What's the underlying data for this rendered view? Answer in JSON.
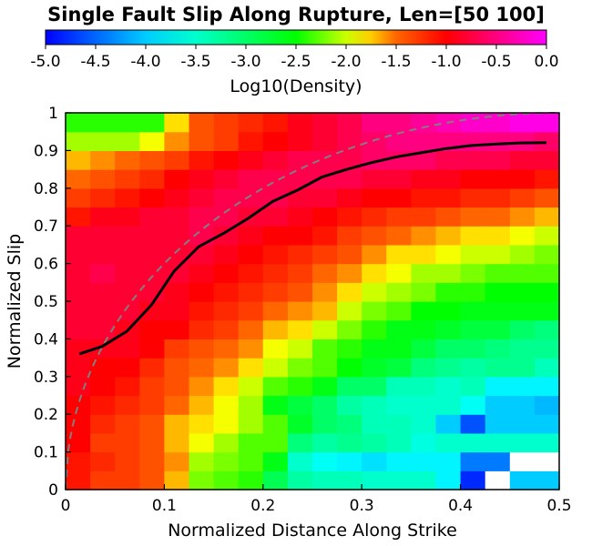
{
  "chart_data": {
    "type": "heatmap",
    "title": "Single Fault Slip Along Rupture, Len=[50 100]",
    "xlabel": "Normalized Distance Along Strike",
    "ylabel": "Normalized Slip",
    "xlim": [
      0,
      0.5
    ],
    "ylim": [
      0,
      1
    ],
    "x_ticks": [
      "0",
      "0.1",
      "0.2",
      "0.3",
      "0.4",
      "0.5"
    ],
    "y_ticks": [
      "0",
      "0.1",
      "0.2",
      "0.3",
      "0.4",
      "0.5",
      "0.6",
      "0.7",
      "0.8",
      "0.9",
      "1"
    ],
    "grid": false,
    "colorbar": {
      "label": "Log10(Density)",
      "range": [
        -5.0,
        0.0
      ],
      "ticks": [
        "-5.0",
        "-4.5",
        "-4.0",
        "-3.5",
        "-3.0",
        "-2.5",
        "-2.0",
        "-1.5",
        "-1.0",
        "-0.5",
        "0.0"
      ],
      "colormap": "hsv-style: blue to cyan to green to yellow to orange to red to magenta"
    },
    "grid_cols": 20,
    "grid_rows": 20,
    "mean_line": {
      "color": "#000000",
      "style": "solid",
      "x": [
        0.014,
        0.037,
        0.062,
        0.087,
        0.11,
        0.135,
        0.16,
        0.185,
        0.21,
        0.235,
        0.26,
        0.285,
        0.31,
        0.335,
        0.36,
        0.385,
        0.41,
        0.435,
        0.46,
        0.487
      ],
      "y": [
        0.36,
        0.38,
        0.42,
        0.49,
        0.58,
        0.645,
        0.68,
        0.72,
        0.765,
        0.795,
        0.83,
        0.85,
        0.868,
        0.883,
        0.894,
        0.905,
        0.913,
        0.917,
        0.92,
        0.921
      ]
    },
    "reference_curve": {
      "color": "#808080",
      "style": "dashed",
      "formula": "y = sqrt(1 - (1 - x/0.5)^2)"
    },
    "density": [
      [
        -1.1,
        -1.3,
        -1.3,
        -1.4,
        -1.7,
        -2.2,
        -2.3,
        -2.4,
        -2.9,
        -3.3,
        -3.4,
        -3.4,
        -3.5,
        -3.5,
        -3.5,
        -3.8,
        -4.8,
        null,
        -4.0,
        -4.0
      ],
      [
        -1.1,
        -1.2,
        -1.3,
        -1.4,
        -1.6,
        -2.1,
        -2.2,
        -2.3,
        -2.6,
        -3.5,
        -3.7,
        -3.8,
        -3.9,
        -3.8,
        -3.8,
        -3.8,
        -4.4,
        -4.4,
        null,
        null
      ],
      [
        -1.0,
        -1.3,
        -1.3,
        -1.4,
        -1.7,
        -1.9,
        -2.1,
        -2.3,
        -2.3,
        -3.1,
        -3.3,
        -3.2,
        -3.3,
        -3.4,
        -3.6,
        -3.5,
        -3.5,
        -3.5,
        -3.5,
        -3.5
      ],
      [
        -1.0,
        -1.2,
        -1.3,
        -1.4,
        -1.7,
        -1.8,
        -1.9,
        -2.1,
        -2.3,
        -2.7,
        -3.0,
        -3.1,
        -3.4,
        -3.4,
        -3.5,
        -4.0,
        -4.6,
        -4.0,
        -4.0,
        -4.0
      ],
      [
        -1.0,
        -1.1,
        -1.2,
        -1.3,
        -1.5,
        -1.7,
        -1.9,
        -2.1,
        -2.6,
        -2.8,
        -3.0,
        -3.3,
        -3.4,
        -3.5,
        -3.5,
        -3.5,
        -3.7,
        -4.0,
        -4.0,
        -4.1
      ],
      [
        -0.9,
        -1.0,
        -1.1,
        -1.3,
        -1.4,
        -1.6,
        -1.8,
        -2.0,
        -2.3,
        -2.4,
        -2.6,
        -3.0,
        -3.0,
        -3.4,
        -3.4,
        -3.5,
        -3.4,
        -3.8,
        -3.8,
        -3.8
      ],
      [
        -0.9,
        -1.0,
        -1.0,
        -1.2,
        -1.4,
        -1.5,
        -1.6,
        -1.8,
        -2.0,
        -2.2,
        -2.3,
        -2.5,
        -2.7,
        -2.8,
        -3.1,
        -3.2,
        -3.3,
        -3.2,
        -3.2,
        -3.4
      ],
      [
        -0.9,
        -0.9,
        -0.9,
        -1.0,
        -1.3,
        -1.4,
        -1.5,
        -1.6,
        -1.9,
        -2.0,
        -2.3,
        -2.4,
        -2.6,
        -2.6,
        -2.8,
        -3.0,
        -3.0,
        -3.1,
        -3.2,
        -3.2
      ],
      [
        -0.8,
        -0.8,
        -0.9,
        -1.0,
        -1.0,
        -1.2,
        -1.3,
        -1.5,
        -1.7,
        -1.8,
        -2.0,
        -2.2,
        -2.4,
        -2.6,
        -2.6,
        -2.7,
        -2.8,
        -2.8,
        -3.0,
        -3.1
      ],
      [
        -0.8,
        -0.8,
        -0.8,
        -0.9,
        -0.9,
        -1.1,
        -1.2,
        -1.3,
        -1.5,
        -1.6,
        -1.7,
        -2.0,
        -2.2,
        -2.3,
        -2.5,
        -2.5,
        -2.6,
        -2.6,
        -2.6,
        -2.6
      ],
      [
        -0.8,
        -0.8,
        -0.8,
        -0.8,
        -0.9,
        -1.0,
        -1.1,
        -1.2,
        -1.3,
        -1.4,
        -1.6,
        -1.8,
        -2.0,
        -2.1,
        -2.2,
        -2.4,
        -2.4,
        -2.5,
        -2.5,
        -2.5
      ],
      [
        -0.8,
        -0.7,
        -0.8,
        -0.8,
        -0.8,
        -0.9,
        -1.0,
        -1.1,
        -1.2,
        -1.3,
        -1.5,
        -1.6,
        -1.8,
        -1.9,
        -2.1,
        -2.1,
        -2.2,
        -2.3,
        -2.3,
        -2.3
      ],
      [
        -0.8,
        -0.8,
        -0.8,
        -0.8,
        -0.8,
        -0.8,
        -0.9,
        -1.0,
        -1.1,
        -1.2,
        -1.3,
        -1.4,
        -1.6,
        -1.8,
        -1.8,
        -1.9,
        -2.0,
        -2.0,
        -2.1,
        -2.2
      ],
      [
        -0.8,
        -0.8,
        -0.8,
        -0.8,
        -0.8,
        -0.7,
        -0.8,
        -0.9,
        -1.0,
        -1.0,
        -1.1,
        -1.3,
        -1.4,
        -1.5,
        -1.6,
        -1.7,
        -1.8,
        -1.8,
        -1.9,
        -2.0
      ],
      [
        -1.1,
        -0.9,
        -0.9,
        -0.8,
        -0.8,
        -0.7,
        -0.7,
        -0.8,
        -0.8,
        -0.9,
        -1.0,
        -1.1,
        -1.2,
        -1.3,
        -1.3,
        -1.4,
        -1.5,
        -1.5,
        -1.6,
        -1.7
      ],
      [
        -1.3,
        -1.2,
        -1.1,
        -1.0,
        -0.9,
        -0.8,
        -0.7,
        -0.7,
        -0.7,
        -0.8,
        -0.8,
        -0.9,
        -1.0,
        -1.0,
        -1.1,
        -1.1,
        -1.2,
        -1.2,
        -1.3,
        -1.4
      ],
      [
        -1.5,
        -1.4,
        -1.3,
        -1.2,
        -1.0,
        -0.9,
        -0.8,
        -0.7,
        -0.7,
        -0.7,
        -0.7,
        -0.7,
        -0.8,
        -0.8,
        -0.9,
        -0.9,
        -1.0,
        -1.0,
        -1.0,
        -1.1
      ],
      [
        -1.7,
        -1.6,
        -1.5,
        -1.4,
        -1.3,
        -1.1,
        -1.0,
        -0.9,
        -0.8,
        -0.7,
        -0.7,
        -0.7,
        -0.6,
        -0.6,
        -0.6,
        -0.7,
        -0.7,
        -0.7,
        -0.8,
        -0.8
      ],
      [
        -2.1,
        -2.1,
        -2.1,
        -1.9,
        -1.6,
        -1.4,
        -1.3,
        -1.1,
        -1.0,
        -0.9,
        -0.8,
        -0.7,
        -0.6,
        -0.5,
        -0.5,
        -0.5,
        -0.5,
        -0.5,
        -0.5,
        -0.6
      ],
      [
        -2.4,
        -2.4,
        -2.4,
        -2.4,
        -1.8,
        -1.4,
        -1.3,
        -1.2,
        -1.1,
        -0.9,
        -0.8,
        -0.7,
        -0.5,
        -0.5,
        -0.4,
        -0.3,
        -0.2,
        -0.2,
        -0.1,
        -0.1
      ]
    ]
  }
}
